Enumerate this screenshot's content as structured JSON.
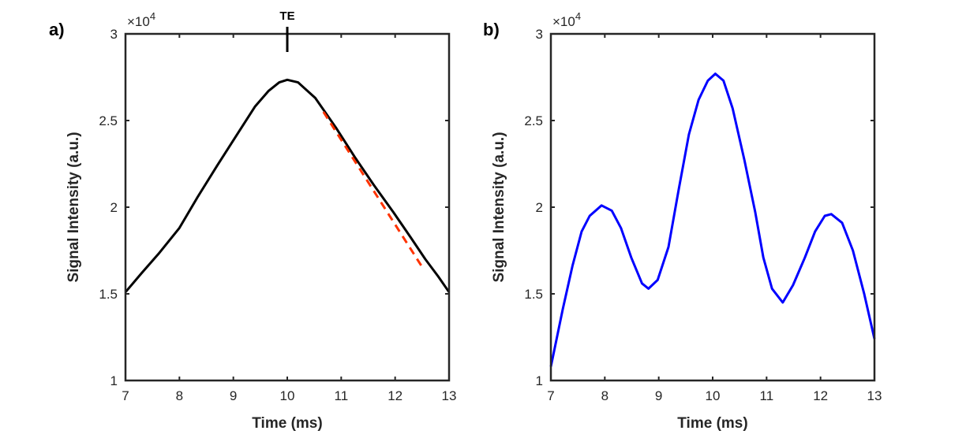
{
  "chart_data": [
    {
      "type": "line",
      "panel_label": "a)",
      "xlabel": "Time (ms)",
      "ylabel": "Signal Intensity (a.u.)",
      "xlim": [
        7,
        13
      ],
      "ylim": [
        10000,
        30000
      ],
      "xticks": [
        7,
        8,
        9,
        10,
        11,
        12,
        13
      ],
      "yticks": [
        1,
        1.5,
        2,
        2.5,
        3
      ],
      "ytick_labels": [
        "1",
        "1.5",
        "2",
        "2.5",
        "3"
      ],
      "y_multiplier": "×10",
      "y_multiplier_exponent": "4",
      "grid": false,
      "annotation": {
        "text": "TE",
        "x": 10
      },
      "series": [
        {
          "color": "#000000",
          "style": "solid",
          "x": [
            7.0,
            7.3,
            7.61,
            8.0,
            8.34,
            8.7,
            9.07,
            9.4,
            9.65,
            9.85,
            10.0,
            10.2,
            10.52,
            10.9,
            11.25,
            11.6,
            11.97,
            12.3,
            12.56,
            12.8,
            13.0
          ],
          "y": [
            15100,
            16200,
            17300,
            18800,
            20600,
            22400,
            24200,
            25800,
            26700,
            27200,
            27350,
            27200,
            26300,
            24600,
            22900,
            21300,
            19700,
            18200,
            17000,
            16000,
            15100
          ]
        },
        {
          "color": "#ff3300",
          "style": "dashed",
          "x": [
            10.67,
            12.49
          ],
          "y": [
            25500,
            16600
          ]
        }
      ]
    },
    {
      "type": "line",
      "panel_label": "b)",
      "xlabel": "Time (ms)",
      "ylabel": "Signal Intensity (a.u.)",
      "xlim": [
        7,
        13
      ],
      "ylim": [
        10000,
        30000
      ],
      "xticks": [
        7,
        8,
        9,
        10,
        11,
        12,
        13
      ],
      "yticks": [
        1,
        1.5,
        2,
        2.5,
        3
      ],
      "ytick_labels": [
        "1",
        "1.5",
        "2",
        "2.5",
        "3"
      ],
      "y_multiplier": "×10",
      "y_multiplier_exponent": "4",
      "grid": false,
      "series": [
        {
          "color": "#0000ff",
          "style": "solid",
          "x": [
            7.0,
            7.22,
            7.4,
            7.57,
            7.72,
            7.94,
            8.13,
            8.3,
            8.49,
            8.69,
            8.81,
            8.98,
            9.18,
            9.37,
            9.56,
            9.74,
            9.91,
            10.05,
            10.2,
            10.37,
            10.59,
            10.79,
            10.94,
            11.1,
            11.3,
            11.49,
            11.71,
            11.9,
            12.08,
            12.2,
            12.4,
            12.6,
            12.81,
            13.0
          ],
          "y": [
            10800,
            14100,
            16600,
            18600,
            19500,
            20100,
            19800,
            18800,
            17100,
            15600,
            15300,
            15800,
            17700,
            21000,
            24200,
            26200,
            27300,
            27700,
            27300,
            25700,
            22700,
            19700,
            17100,
            15300,
            14500,
            15500,
            17100,
            18600,
            19500,
            19600,
            19100,
            17500,
            15000,
            12400
          ]
        }
      ]
    }
  ]
}
